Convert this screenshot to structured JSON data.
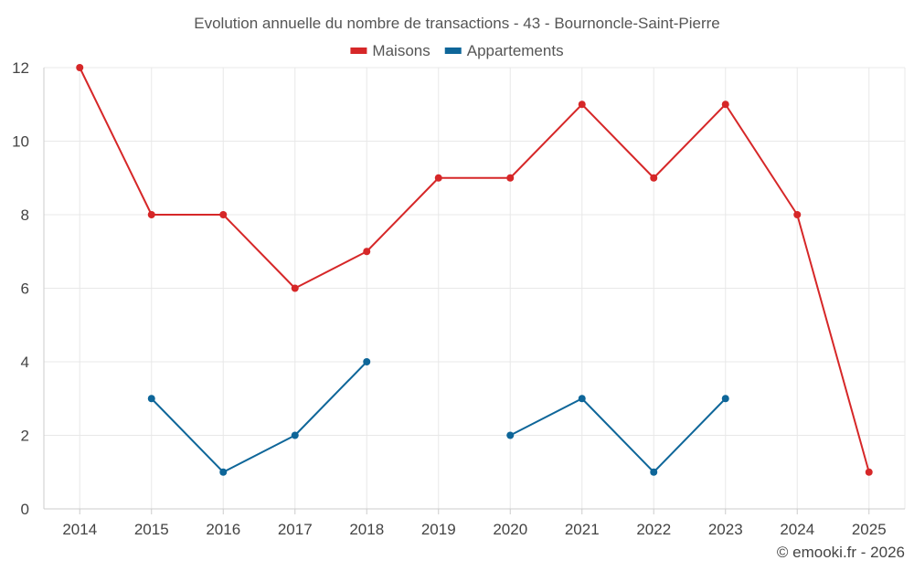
{
  "chart_data": {
    "type": "line",
    "title": "Evolution annuelle du nombre de transactions - 43 - Bournoncle-Saint-Pierre",
    "xlabel": "",
    "ylabel": "",
    "x": [
      "2014",
      "2015",
      "2016",
      "2017",
      "2018",
      "2019",
      "2020",
      "2021",
      "2022",
      "2023",
      "2024",
      "2025"
    ],
    "ylim": [
      0,
      12
    ],
    "yticks": [
      "0",
      "2",
      "4",
      "6",
      "8",
      "10",
      "12"
    ],
    "grid": true,
    "legend_position": "top-center",
    "series": [
      {
        "name": "Maisons",
        "color": "#d62728",
        "values": [
          12,
          8,
          8,
          6,
          7,
          9,
          9,
          11,
          9,
          11,
          8,
          1
        ]
      },
      {
        "name": "Appartements",
        "color": "#0e6699",
        "values": [
          null,
          3,
          1,
          2,
          4,
          null,
          2,
          3,
          1,
          3,
          null,
          null
        ]
      }
    ]
  },
  "credit": "© emooki.fr - 2026"
}
